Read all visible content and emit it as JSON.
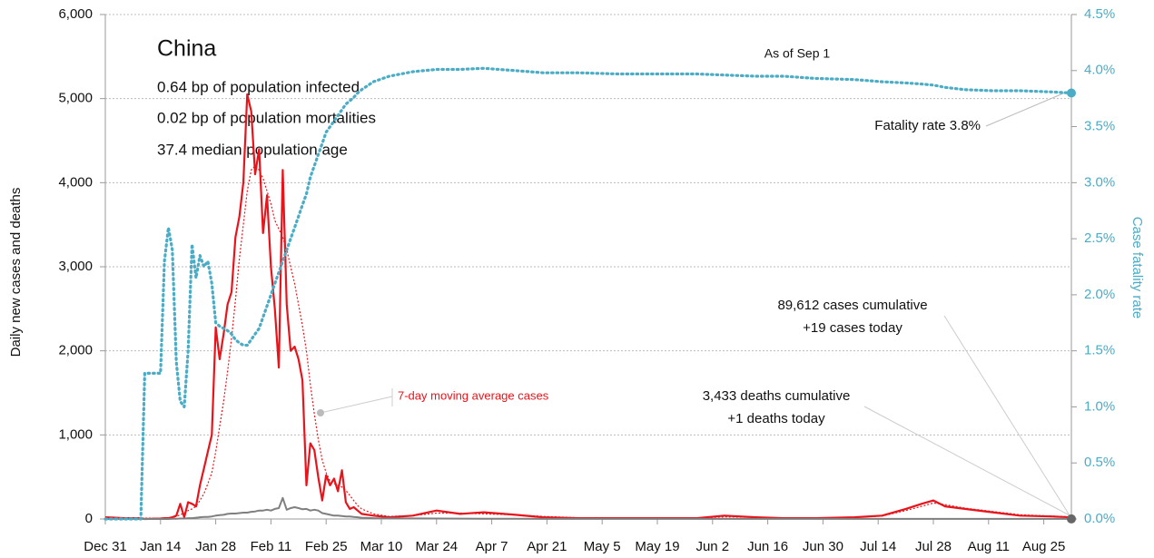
{
  "chart_data": {
    "type": "line",
    "title": "China",
    "stats": [
      "0.64 bp of population infected",
      "0.02 bp of population mortalities",
      "37.4 median population age"
    ],
    "annotations": [
      "As of Sep 1",
      "Fatality rate 3.8%",
      "89,612 cases cumulative",
      "+19 cases today",
      "3,433 deaths cumulative",
      "+1 deaths today"
    ],
    "ylabel": "Daily new cases and deaths",
    "y2label": "Case fatality rate",
    "x": [
      0,
      5,
      9,
      10,
      14,
      15,
      16,
      17,
      18,
      19,
      20,
      21,
      22,
      23,
      24,
      25,
      26,
      27,
      28,
      29,
      30,
      31,
      32,
      33,
      34,
      35,
      36,
      37,
      38,
      39,
      40,
      41,
      42,
      43,
      44,
      45,
      46,
      47,
      48,
      49,
      50,
      51,
      52,
      53,
      54,
      55,
      56,
      57,
      58,
      59,
      60,
      61,
      62,
      63,
      64,
      65,
      68,
      72,
      78,
      84,
      90,
      96,
      104,
      111,
      120,
      130,
      140,
      150,
      157,
      165,
      172,
      180,
      190,
      197,
      203,
      207,
      210,
      213,
      218,
      225,
      232,
      240,
      245
    ],
    "xlim": [
      0,
      245
    ],
    "xticks": [
      {
        "value": 0,
        "label": "Dec 31"
      },
      {
        "value": 14,
        "label": "Jan 14"
      },
      {
        "value": 28,
        "label": "Jan 28"
      },
      {
        "value": 42,
        "label": "Feb 11"
      },
      {
        "value": 56,
        "label": "Feb 25"
      },
      {
        "value": 70,
        "label": "Mar 10"
      },
      {
        "value": 84,
        "label": "Mar 24"
      },
      {
        "value": 98,
        "label": "Apr 7"
      },
      {
        "value": 112,
        "label": "Apr 21"
      },
      {
        "value": 126,
        "label": "May 5"
      },
      {
        "value": 140,
        "label": "May 19"
      },
      {
        "value": 154,
        "label": "Jun 2"
      },
      {
        "value": 168,
        "label": "Jun 16"
      },
      {
        "value": 182,
        "label": "Jun 30"
      },
      {
        "value": 196,
        "label": "Jul 14"
      },
      {
        "value": 210,
        "label": "Jul 28"
      },
      {
        "value": 224,
        "label": "Aug 11"
      },
      {
        "value": 238,
        "label": "Aug 25"
      }
    ],
    "ylim": [
      0,
      6000
    ],
    "yticks": [
      0,
      {
        "value": 1000,
        "label": "1,000"
      },
      {
        "value": 2000,
        "label": "2,000"
      },
      {
        "value": 3000,
        "label": "3,000"
      },
      {
        "value": 4000,
        "label": "4,000"
      },
      {
        "value": 5000,
        "label": "5,000"
      },
      {
        "value": 6000,
        "label": "6,000"
      }
    ],
    "y2lim": [
      0,
      4.5
    ],
    "y2ticks": [
      {
        "value": 0,
        "label": "0.0%"
      },
      {
        "value": 0.5,
        "label": "0.5%"
      },
      {
        "value": 1,
        "label": "1.0%"
      },
      {
        "value": 1.5,
        "label": "1.5%"
      },
      {
        "value": 2,
        "label": "2.0%"
      },
      {
        "value": 2.5,
        "label": "2.5%"
      },
      {
        "value": 3,
        "label": "3.0%"
      },
      {
        "value": 3.5,
        "label": "3.5%"
      },
      {
        "value": 4,
        "label": "4.0%"
      },
      {
        "value": 4.5,
        "label": "4.5%"
      }
    ],
    "grid": true,
    "series": [
      {
        "color": "#e8141b",
        "style": "solid",
        "width": 2.2,
        "values": [
          20,
          10,
          10,
          0,
          5,
          10,
          10,
          20,
          40,
          180,
          20,
          200,
          180,
          150,
          400,
          600,
          800,
          1000,
          2280,
          1900,
          2200,
          2550,
          2700,
          3350,
          3600,
          4000,
          5050,
          4850,
          4100,
          4400,
          3400,
          3850,
          3000,
          2500,
          1800,
          4150,
          2550,
          2000,
          2050,
          1900,
          1650,
          400,
          900,
          820,
          500,
          220,
          520,
          400,
          480,
          330,
          580,
          200,
          120,
          140,
          100,
          60,
          40,
          20,
          40,
          100,
          60,
          80,
          50,
          20,
          10,
          10,
          10,
          10,
          40,
          20,
          10,
          10,
          20,
          40,
          120,
          180,
          220,
          150,
          120,
          80,
          40,
          30,
          19
        ]
      },
      {
        "name": "7-day moving average cases",
        "color": "#e8141b",
        "style": "dotted",
        "width": 1.2,
        "values": [
          10,
          10,
          10,
          10,
          10,
          10,
          10,
          15,
          30,
          50,
          70,
          100,
          120,
          150,
          220,
          300,
          420,
          550,
          800,
          1100,
          1400,
          1750,
          2150,
          2600,
          3100,
          3500,
          3900,
          4150,
          4200,
          4150,
          4050,
          3900,
          3750,
          3550,
          3450,
          3350,
          3200,
          3000,
          2800,
          2550,
          2300,
          2000,
          1600,
          1250,
          950,
          700,
          550,
          450,
          420,
          400,
          380,
          340,
          280,
          220,
          160,
          120,
          60,
          30,
          40,
          70,
          70,
          60,
          50,
          30,
          15,
          10,
          10,
          10,
          25,
          20,
          12,
          12,
          20,
          35,
          100,
          150,
          190,
          170,
          130,
          90,
          50,
          35,
          25
        ]
      },
      {
        "color": "#7f7f7f",
        "style": "solid",
        "width": 2,
        "values": [
          0,
          0,
          0,
          0,
          0,
          0,
          0,
          2,
          3,
          5,
          5,
          10,
          10,
          15,
          20,
          25,
          25,
          30,
          40,
          45,
          50,
          60,
          65,
          65,
          70,
          75,
          75,
          85,
          90,
          100,
          100,
          110,
          100,
          120,
          130,
          250,
          110,
          130,
          140,
          130,
          115,
          120,
          100,
          110,
          100,
          70,
          60,
          50,
          40,
          40,
          35,
          30,
          30,
          25,
          20,
          15,
          10,
          8,
          6,
          5,
          4,
          3,
          2,
          1,
          1,
          1,
          1,
          1,
          1,
          1,
          1,
          1,
          1,
          1,
          1,
          1,
          1,
          1,
          1,
          1,
          1,
          1,
          1
        ]
      },
      {
        "color": "#4bacc6",
        "style": "dotted",
        "width": 3.2,
        "axis": "y2",
        "values": [
          0,
          0,
          0,
          1.3,
          1.3,
          2.3,
          2.6,
          2.4,
          1.4,
          1.05,
          1.0,
          1.5,
          2.45,
          2.15,
          2.35,
          2.25,
          2.3,
          2.1,
          1.75,
          1.72,
          1.7,
          1.68,
          1.65,
          1.6,
          1.57,
          1.55,
          1.55,
          1.6,
          1.65,
          1.7,
          1.8,
          1.9,
          2.0,
          2.1,
          2.2,
          2.3,
          2.4,
          2.5,
          2.6,
          2.7,
          2.8,
          2.9,
          3.05,
          3.15,
          3.25,
          3.35,
          3.45,
          3.5,
          3.55,
          3.6,
          3.65,
          3.7,
          3.73,
          3.76,
          3.8,
          3.83,
          3.9,
          3.95,
          3.99,
          4.01,
          4.01,
          4.02,
          4.0,
          3.98,
          3.98,
          3.97,
          3.97,
          3.97,
          3.96,
          3.95,
          3.95,
          3.93,
          3.92,
          3.9,
          3.89,
          3.88,
          3.87,
          3.85,
          3.83,
          3.82,
          3.82,
          3.81,
          3.8
        ]
      }
    ]
  }
}
